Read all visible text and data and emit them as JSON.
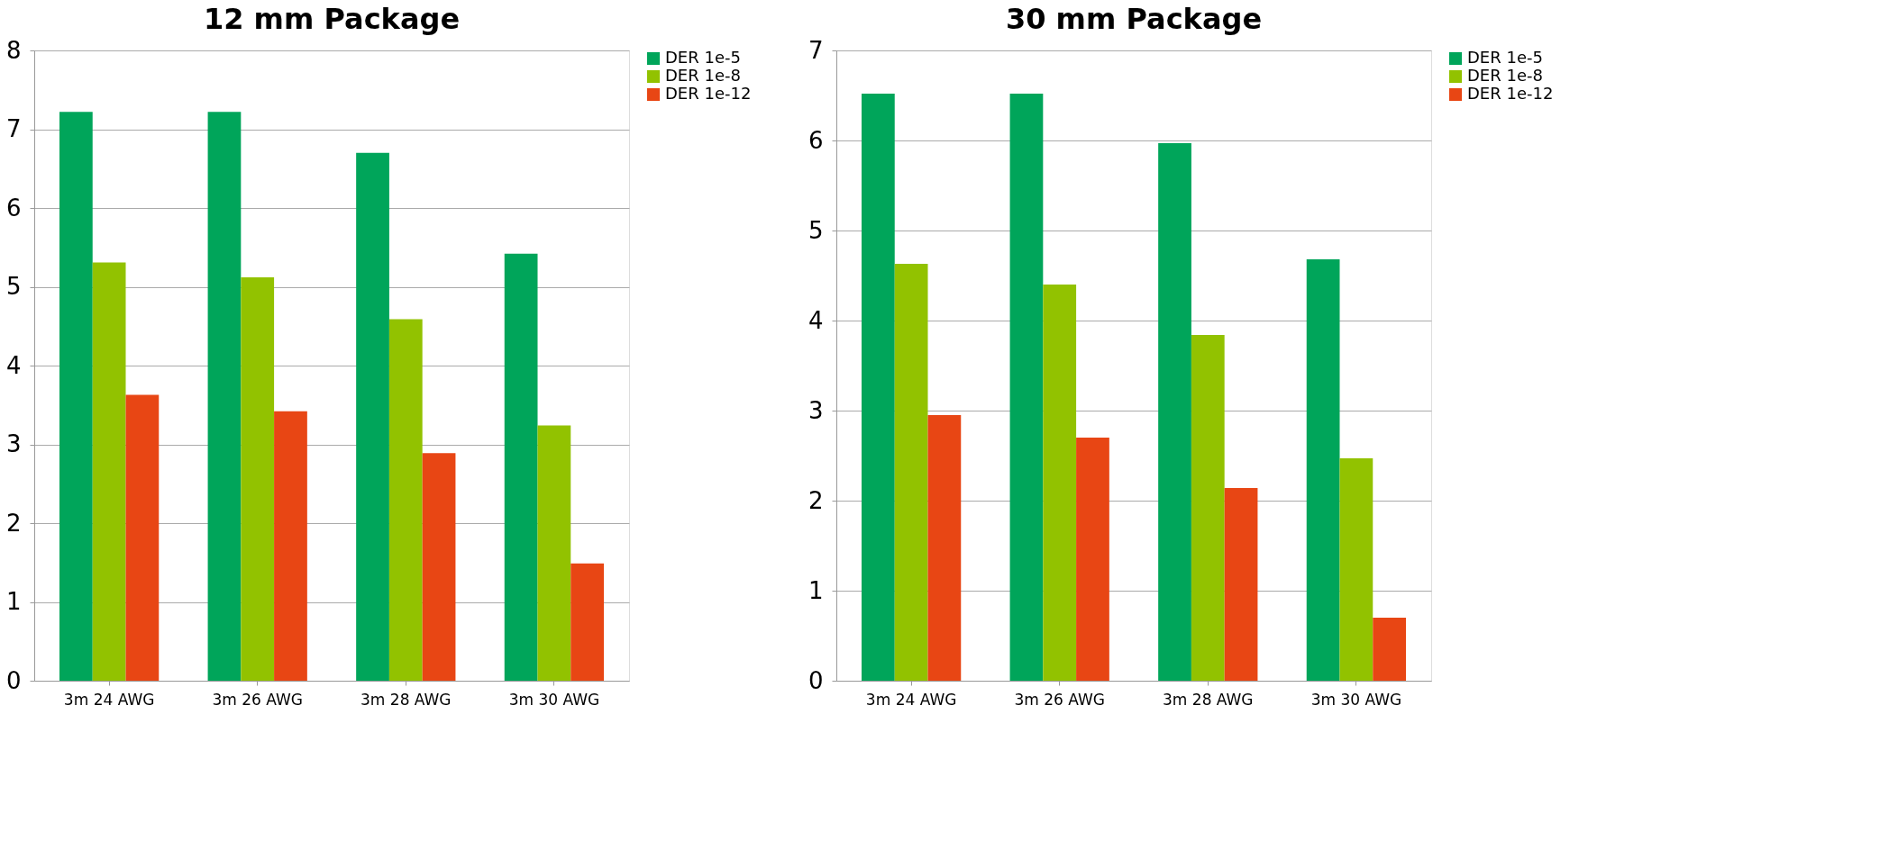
{
  "chart_data": [
    {
      "type": "bar",
      "title": "12 mm Package",
      "categories": [
        "3m 24 AWG",
        "3m 26 AWG",
        "3m 28 AWG",
        "3m 30 AWG"
      ],
      "series": [
        {
          "name": "DER 1e-5",
          "color": "#00a55a",
          "values": [
            7.22,
            7.22,
            6.7,
            5.42
          ]
        },
        {
          "name": "DER 1e-8",
          "color": "#92c200",
          "values": [
            5.31,
            5.12,
            4.59,
            3.24
          ]
        },
        {
          "name": "DER 1e-12",
          "color": "#e84614",
          "values": [
            3.63,
            3.42,
            2.89,
            1.49
          ]
        }
      ],
      "ylim": [
        0,
        8
      ],
      "yticks": [
        0,
        1,
        2,
        3,
        4,
        5,
        6,
        7,
        8
      ],
      "grid": "y",
      "legend": "right"
    },
    {
      "type": "bar",
      "title": "30 mm Package",
      "categories": [
        "3m 24 AWG",
        "3m 26 AWG",
        "3m 28 AWG",
        "3m 30 AWG"
      ],
      "series": [
        {
          "name": "DER 1e-5",
          "color": "#00a55a",
          "values": [
            6.52,
            6.52,
            5.97,
            4.68
          ]
        },
        {
          "name": "DER 1e-8",
          "color": "#92c200",
          "values": [
            4.63,
            4.4,
            3.84,
            2.47
          ]
        },
        {
          "name": "DER 1e-12",
          "color": "#e84614",
          "values": [
            2.95,
            2.7,
            2.14,
            0.7
          ]
        }
      ],
      "ylim": [
        0,
        7
      ],
      "yticks": [
        0,
        1,
        2,
        3,
        4,
        5,
        6,
        7
      ],
      "grid": "y",
      "legend": "right"
    }
  ]
}
